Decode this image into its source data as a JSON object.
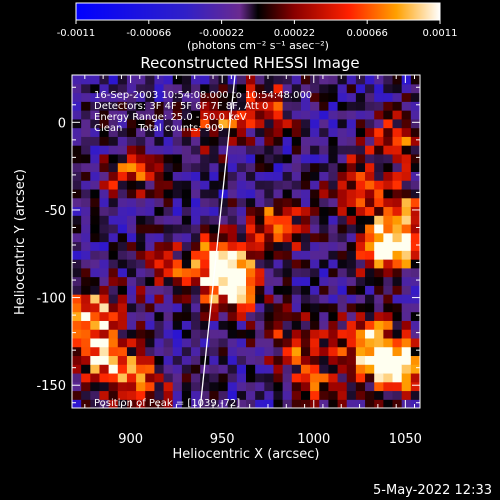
{
  "chart_data": {
    "type": "heatmap",
    "title": "Reconstructed RHESSI Image",
    "xlabel": "Heliocentric X (arcsec)",
    "ylabel": "Heliocentric Y (arcsec)",
    "xlim": [
      868,
      1058
    ],
    "ylim": [
      -163,
      27
    ],
    "x_ticks": [
      900,
      950,
      1000,
      1050
    ],
    "y_ticks": [
      0,
      -50,
      -100,
      -150
    ],
    "colorbar": {
      "range": [
        -0.0011,
        0.0011
      ],
      "tick_values": [
        -0.0011,
        -0.00066,
        -0.00022,
        0.00022,
        0.00066,
        0.0011
      ],
      "tick_labels": [
        "-0.0011",
        "-0.00066",
        "-0.00022",
        "0.00022",
        "0.00066",
        "0.0011"
      ],
      "units_text": "(photons cm⁻² s⁻¹ asec⁻²)"
    },
    "annotations": [
      "16-Sep-2003 10:54:08.000 to 10:54:48.000",
      "Detectors: 3F 4F 5F 6F 7F 8F, Att 0",
      "Energy Range: 25.0 - 50.0 keV",
      "Clean     Total counts: 909",
      "Position of Peak = [1039,-72]"
    ],
    "peak": [
      1039,
      -72
    ],
    "limb_line": [
      [
        957,
        27
      ],
      [
        938,
        -163
      ]
    ],
    "hot_spots": [
      [
        878,
        -110,
        0.0009
      ],
      [
        885,
        -135,
        0.0008
      ],
      [
        905,
        -150,
        0.0007
      ],
      [
        950,
        -78,
        0.001
      ],
      [
        955,
        -95,
        0.0008
      ],
      [
        980,
        -60,
        0.0008
      ],
      [
        990,
        -125,
        0.0006
      ],
      [
        1030,
        -125,
        0.0009
      ],
      [
        1045,
        -140,
        0.0011
      ],
      [
        1040,
        -72,
        0.0011
      ],
      [
        1050,
        -50,
        0.0007
      ],
      [
        900,
        -30,
        0.0006
      ],
      [
        945,
        0,
        0.0006
      ],
      [
        975,
        10,
        0.0006
      ],
      [
        1045,
        -10,
        0.0006
      ],
      [
        1000,
        -150,
        0.0005
      ],
      [
        1020,
        -35,
        0.0006
      ],
      [
        920,
        -85,
        0.0005
      ]
    ],
    "footer_date": "5-May-2022 12:33"
  }
}
